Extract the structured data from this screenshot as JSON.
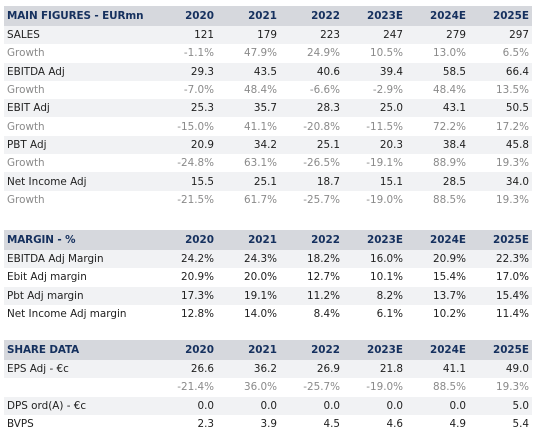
{
  "years": [
    "2020",
    "2021",
    "2022",
    "2023E",
    "2024E",
    "2025E"
  ],
  "sections": [
    {
      "title": "MAIN FIGURES - EURmn",
      "rows": [
        {
          "label": "SALES",
          "values": [
            "121",
            "179",
            "223",
            "247",
            "279",
            "297"
          ],
          "type": "main"
        },
        {
          "label": "Growth",
          "values": [
            "-1.1%",
            "47.9%",
            "24.9%",
            "10.5%",
            "13.0%",
            "6.5%"
          ],
          "type": "growth"
        },
        {
          "label": "EBITDA Adj",
          "values": [
            "29.3",
            "43.5",
            "40.6",
            "39.4",
            "58.5",
            "66.4"
          ],
          "type": "main"
        },
        {
          "label": "Growth",
          "values": [
            "-7.0%",
            "48.4%",
            "-6.6%",
            "-2.9%",
            "48.4%",
            "13.5%"
          ],
          "type": "growth"
        },
        {
          "label": "EBIT Adj",
          "values": [
            "25.3",
            "35.7",
            "28.3",
            "25.0",
            "43.1",
            "50.5"
          ],
          "type": "main"
        },
        {
          "label": "Growth",
          "values": [
            "-15.0%",
            "41.1%",
            "-20.8%",
            "-11.5%",
            "72.2%",
            "17.2%"
          ],
          "type": "growth"
        },
        {
          "label": "PBT Adj",
          "values": [
            "20.9",
            "34.2",
            "25.1",
            "20.3",
            "38.4",
            "45.8"
          ],
          "type": "main"
        },
        {
          "label": "Growth",
          "values": [
            "-24.8%",
            "63.1%",
            "-26.5%",
            "-19.1%",
            "88.9%",
            "19.3%"
          ],
          "type": "growth"
        },
        {
          "label": "Net Income Adj",
          "values": [
            "15.5",
            "25.1",
            "18.7",
            "15.1",
            "28.5",
            "34.0"
          ],
          "type": "main"
        },
        {
          "label": "Growth",
          "values": [
            "-21.5%",
            "61.7%",
            "-25.7%",
            "-19.0%",
            "88.5%",
            "19.3%"
          ],
          "type": "growth"
        }
      ]
    },
    {
      "title": "MARGIN - %",
      "rows": [
        {
          "label": "EBITDA Adj Margin",
          "values": [
            "24.2%",
            "24.3%",
            "18.2%",
            "16.0%",
            "20.9%",
            "22.3%"
          ],
          "type": "main"
        },
        {
          "label": "Ebit Adj margin",
          "values": [
            "20.9%",
            "20.0%",
            "12.7%",
            "10.1%",
            "15.4%",
            "17.0%"
          ],
          "type": "main"
        },
        {
          "label": "Pbt Adj margin",
          "values": [
            "17.3%",
            "19.1%",
            "11.2%",
            "8.2%",
            "13.7%",
            "15.4%"
          ],
          "type": "main"
        },
        {
          "label": "Net Income Adj margin",
          "values": [
            "12.8%",
            "14.0%",
            "8.4%",
            "6.1%",
            "10.2%",
            "11.4%"
          ],
          "type": "main"
        }
      ]
    },
    {
      "title": "SHARE DATA",
      "rows": [
        {
          "label": "EPS Adj - €c",
          "values": [
            "26.6",
            "36.2",
            "26.9",
            "21.8",
            "41.1",
            "49.0"
          ],
          "type": "main"
        },
        {
          "label": "",
          "values": [
            "-21.4%",
            "36.0%",
            "-25.7%",
            "-19.0%",
            "88.5%",
            "19.3%"
          ],
          "type": "growth"
        },
        {
          "label": "DPS ord(A) - €c",
          "values": [
            "0.0",
            "0.0",
            "0.0",
            "0.0",
            "0.0",
            "5.0"
          ],
          "type": "main"
        },
        {
          "label": "BVPS",
          "values": [
            "2.3",
            "3.9",
            "4.5",
            "4.6",
            "4.9",
            "5.4"
          ],
          "type": "main"
        }
      ]
    }
  ]
}
